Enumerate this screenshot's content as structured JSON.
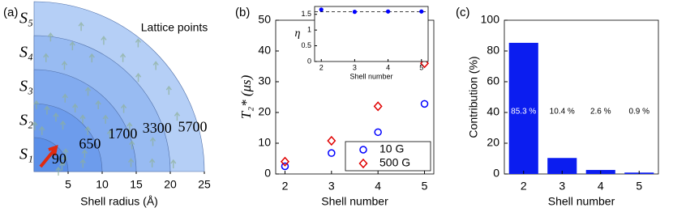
{
  "chart_data": [
    {
      "type": "shells",
      "panel_label": "(a)",
      "annotation": "Lattice points",
      "xlabel": "Shell radius (Å)",
      "xlim": [
        0,
        25
      ],
      "xticks": [
        5,
        10,
        15,
        20,
        25
      ],
      "shells": [
        {
          "name": "S₁",
          "lattice_points": 90,
          "color": "#5b8fe8"
        },
        {
          "name": "S₂",
          "lattice_points": 650,
          "color": "#6d9cec"
        },
        {
          "name": "S₃",
          "lattice_points": 1700,
          "color": "#82abef"
        },
        {
          "name": "S₄",
          "lattice_points": 3300,
          "color": "#98bbf2"
        },
        {
          "name": "S₅",
          "lattice_points": 5700,
          "color": "#b5cff6"
        }
      ]
    },
    {
      "type": "scatter",
      "panel_label": "(b)",
      "xlabel": "Shell number",
      "ylabel": "T₂* (μs)",
      "x": [
        2,
        3,
        4,
        5
      ],
      "xlim": [
        1.8,
        5.2
      ],
      "xticks": [
        2,
        3,
        4,
        5
      ],
      "ylim": [
        0,
        50
      ],
      "yticks": [
        0,
        10,
        20,
        30,
        40,
        50
      ],
      "legend": "lower right",
      "series": [
        {
          "name": "10 G",
          "color": "#0000ff",
          "marker": "circle",
          "values": [
            2.5,
            6.8,
            13.6,
            22.8
          ]
        },
        {
          "name": "500 G",
          "color": "#e00000",
          "marker": "diamond",
          "values": [
            4,
            10.8,
            22,
            36
          ]
        }
      ],
      "inset": {
        "xlabel": "Shell number",
        "ylabel": "η",
        "x": [
          2,
          3,
          4,
          5
        ],
        "xlim": [
          1.8,
          5.2
        ],
        "xticks": [
          2,
          3,
          4,
          5
        ],
        "ylim": [
          0,
          1.75
        ],
        "yticks": [
          0,
          0.5,
          1,
          1.5
        ],
        "reference_line": 1.58,
        "color": "#0000ff",
        "values": [
          1.65,
          1.58,
          1.59,
          1.59
        ]
      }
    },
    {
      "type": "bar",
      "panel_label": "(c)",
      "xlabel": "Shell number",
      "ylabel": "Contribution (%)",
      "categories": [
        "2",
        "3",
        "4",
        "5"
      ],
      "values": [
        85.3,
        10.4,
        2.6,
        0.9
      ],
      "value_labels": [
        "85.3 %",
        "10.4 %",
        "2.6 %",
        "0.9 %"
      ],
      "color": "#0b1df0",
      "ylim": [
        0,
        100
      ],
      "yticks": [
        0,
        20,
        40,
        60,
        80,
        100
      ]
    }
  ]
}
